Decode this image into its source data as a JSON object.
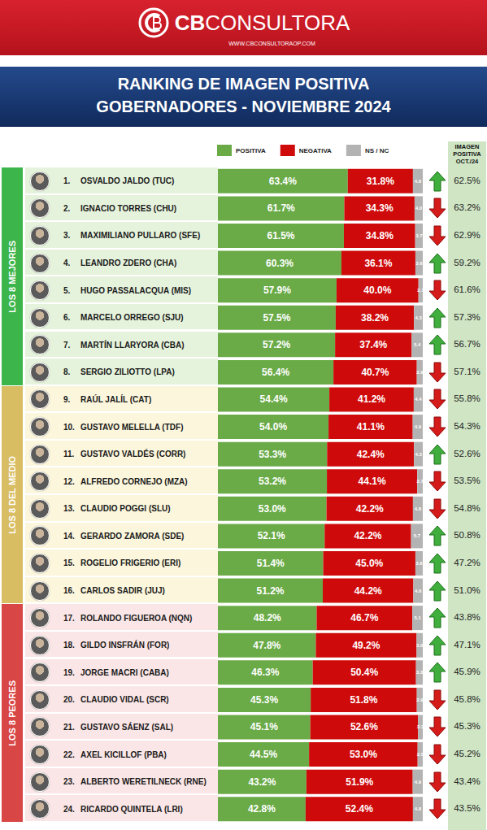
{
  "chart_data": {
    "type": "bar",
    "brand_bold": "CB",
    "brand": "CONSULTORA",
    "url": "WWW.CBCONSULTORAOP.COM",
    "title": "RANKING DE IMAGEN POSITIVA",
    "subtitle": "GOBERNADORES - NOVIEMBRE 2024",
    "orientation": "horizontal",
    "stacked": true,
    "data_labels": true,
    "tick_labels": false,
    "grid": false,
    "legend": "top",
    "xlim": [
      0,
      100
    ],
    "ranks": [
      "1.",
      "2.",
      "3.",
      "4.",
      "5.",
      "6.",
      "7.",
      "8.",
      "9.",
      "10.",
      "11.",
      "12.",
      "13.",
      "14.",
      "15.",
      "16.",
      "17.",
      "18.",
      "19.",
      "20.",
      "21.",
      "22.",
      "23.",
      "24."
    ],
    "categories": [
      "OSVALDO JALDO (TUC)",
      "IGNACIO TORRES (CHU)",
      "MAXIMILIANO PULLARO (SFE)",
      "LEANDRO ZDERO (CHA)",
      "HUGO PASSALACQUA (MIS)",
      "MARCELO ORREGO (SJU)",
      "MARTÍN LLARYORA (CBA)",
      "SERGIO ZILIOTTO (LPA)",
      "RAÚL JALÍL (CAT)",
      "GUSTAVO MELELLA (TDF)",
      "GUSTAVO VALDÉS (CORR)",
      "ALFREDO CORNEJO (MZA)",
      "CLAUDIO POGGI (SLU)",
      "GERARDO ZAMORA (SDE)",
      "ROGELIO FRIGERIO (ERI)",
      "CARLOS SADIR (JUJ)",
      "ROLANDO FIGUEROA (NQN)",
      "GILDO INSFRÁN (FOR)",
      "JORGE MACRI (CABA)",
      "CLAUDIO VIDAL (SCR)",
      "GUSTAVO SÁENZ (SAL)",
      "AXEL KICILLOF (PBA)",
      "ALBERTO WERETILNECK (RNE)",
      "RICARDO QUINTELA (LRI)"
    ],
    "groups": [
      {
        "label": "LOS 8 MEJORES",
        "rows": 8,
        "color": "#3cb54a",
        "background": "#e6f3dc"
      },
      {
        "label": "LOS 8 DEL MEDIO",
        "rows": 8,
        "color": "#d8bd62",
        "background": "#fbf6dc"
      },
      {
        "label": "LOS 8 PEORES",
        "rows": 8,
        "color": "#d84646",
        "background": "#fae6e6"
      }
    ],
    "series": [
      {
        "name": "POSITIVA",
        "color": "#6aab48",
        "values": [
          63.4,
          61.7,
          61.5,
          60.3,
          57.9,
          57.5,
          57.2,
          56.4,
          54.4,
          54.0,
          53.3,
          53.2,
          53.0,
          52.1,
          51.4,
          51.2,
          48.2,
          47.8,
          46.3,
          45.3,
          45.1,
          44.5,
          43.2,
          42.8
        ],
        "value_labels": [
          "63.4%",
          "61.7%",
          "61.5%",
          "60.3%",
          "57.9%",
          "57.5%",
          "57.2%",
          "56.4%",
          "54.4%",
          "54.0%",
          "53.3%",
          "53.2%",
          "53.0%",
          "52.1%",
          "51.4%",
          "51.2%",
          "48.2%",
          "47.8%",
          "46.3%",
          "45.3%",
          "45.1%",
          "44.5%",
          "43.2%",
          "42.8%"
        ]
      },
      {
        "name": "NEGATIVA",
        "color": "#cf0a0a",
        "values": [
          31.8,
          34.3,
          34.8,
          36.1,
          40.0,
          38.2,
          37.4,
          40.7,
          41.2,
          41.1,
          42.4,
          44.1,
          42.2,
          42.2,
          45.0,
          44.2,
          46.7,
          49.2,
          50.4,
          51.8,
          52.6,
          53.0,
          51.9,
          52.4
        ],
        "value_labels": [
          "31.8%",
          "34.3%",
          "34.8%",
          "36.1%",
          "40.0%",
          "38.2%",
          "37.4%",
          "40.7%",
          "41.2%",
          "41.1%",
          "42.4%",
          "44.1%",
          "42.2%",
          "42.2%",
          "45.0%",
          "44.2%",
          "46.7%",
          "49.2%",
          "50.4%",
          "51.8%",
          "52.6%",
          "53.0%",
          "51.9%",
          "52.4%"
        ]
      },
      {
        "name": "NS / NC",
        "color": "#b3b3b3",
        "values": [
          4.8,
          4.0,
          3.7,
          3.6,
          2.1,
          4.3,
          5.4,
          2.9,
          4.4,
          4.9,
          4.3,
          2.7,
          4.8,
          5.7,
          3.6,
          4.6,
          5.1,
          3.0,
          3.3,
          2.9,
          2.3,
          2.5,
          4.9,
          4.8
        ],
        "value_labels": [
          "4.8",
          "4.0",
          "3.7",
          "3.6",
          "2.1",
          "4.3",
          "5.4",
          "2.9",
          "4.4",
          "4.9",
          "4.3",
          "2.7",
          "4.8",
          "5.7",
          "3.6",
          "4.6",
          "5.1",
          "3.0",
          "3.3",
          "2.9",
          "2.3",
          "2.5",
          "4.9",
          "4.8"
        ]
      }
    ],
    "previous": {
      "title": "IMAGEN POSITIVA OCT./24",
      "values": [
        62.5,
        63.2,
        62.9,
        59.2,
        61.6,
        57.3,
        56.7,
        57.1,
        55.8,
        54.3,
        52.6,
        53.5,
        54.8,
        50.8,
        47.2,
        51.0,
        43.8,
        47.1,
        45.9,
        45.8,
        45.3,
        45.2,
        43.4,
        43.5
      ],
      "value_labels": [
        "62.5%",
        "63.2%",
        "62.9%",
        "59.2%",
        "61.6%",
        "57.3%",
        "56.7%",
        "57.1%",
        "55.8%",
        "54.3%",
        "52.6%",
        "53.5%",
        "54.8%",
        "50.8%",
        "47.2%",
        "51.0%",
        "43.8%",
        "47.1%",
        "45.9%",
        "45.8%",
        "45.3%",
        "45.2%",
        "43.4%",
        "43.5%"
      ]
    }
  }
}
